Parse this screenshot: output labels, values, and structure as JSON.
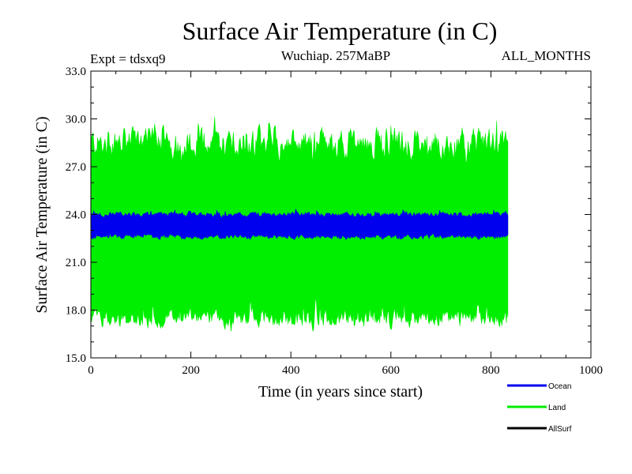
{
  "chart_data": {
    "type": "line",
    "title": "Surface Air Temperature (in C)",
    "subtitle_left": "Expt = tdsxq9",
    "subtitle_center": "Wuchiap. 257MaBP",
    "subtitle_right": "ALL_MONTHS",
    "xlabel": "Time (in years since start)",
    "ylabel": "Surface Air Temperature (in C)",
    "xlim": [
      0,
      1000
    ],
    "ylim": [
      15.0,
      33.0
    ],
    "x_ticks": [
      0,
      200,
      400,
      600,
      800,
      1000
    ],
    "y_ticks": [
      "15.0",
      "18.0",
      "21.0",
      "24.0",
      "27.0",
      "30.0",
      "33.0"
    ],
    "x_start": 0,
    "x_end": 835,
    "series": [
      {
        "name": "Land",
        "color": "#00ee00",
        "band_min_range": [
          16.2,
          19.5
        ],
        "band_max_range": [
          26.0,
          31.1
        ],
        "typical_min": 17.5,
        "typical_max": 28.5
      },
      {
        "name": "Ocean",
        "color": "#0000ee",
        "band_min_range": [
          22.2,
          23.0
        ],
        "band_max_range": [
          23.8,
          24.6
        ],
        "typical_min": 22.6,
        "typical_max": 24.0
      },
      {
        "name": "AllSurf",
        "color": "#000000",
        "values": []
      }
    ],
    "legend": {
      "position": "bottom-right",
      "entries": [
        {
          "label": "Ocean",
          "color": "#0000ee"
        },
        {
          "label": "Land",
          "color": "#00ee00"
        },
        {
          "label": "AllSurf",
          "color": "#000000"
        }
      ]
    }
  }
}
